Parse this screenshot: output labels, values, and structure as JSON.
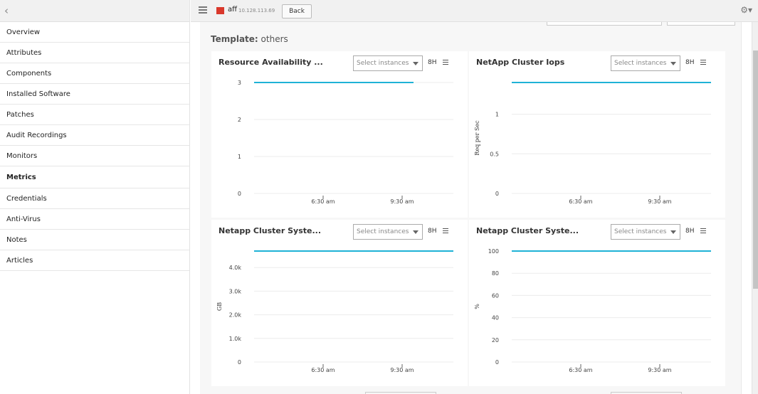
{
  "sidebar": {
    "items": [
      {
        "label": "Overview"
      },
      {
        "label": "Attributes"
      },
      {
        "label": "Components"
      },
      {
        "label": "Installed Software"
      },
      {
        "label": "Patches"
      },
      {
        "label": "Audit Recordings"
      },
      {
        "label": "Monitors"
      },
      {
        "label": "Metrics",
        "active": true
      },
      {
        "label": "Credentials"
      },
      {
        "label": "Anti-Virus"
      },
      {
        "label": "Notes"
      },
      {
        "label": "Articles"
      }
    ]
  },
  "header": {
    "monitor_name": "aff",
    "monitor_ip": "10.128.113.69",
    "back_label": "Back",
    "status_color": "#d9382b"
  },
  "template": {
    "prefix": "Template:",
    "name": "others"
  },
  "panels": [
    {
      "title": "Resource Availability ...",
      "select_placeholder": "Select instances",
      "range": "8H"
    },
    {
      "title": "NetApp Cluster Iops",
      "select_placeholder": "Select instances",
      "range": "8H"
    },
    {
      "title": "Netapp Cluster Syste...",
      "select_placeholder": "Select instances",
      "range": "8H"
    },
    {
      "title": "Netapp Cluster Syste...",
      "select_placeholder": "Select instances",
      "range": "8H"
    }
  ],
  "chart_data": [
    {
      "type": "line",
      "title": "Resource Availability ...",
      "ylabel": "",
      "yticks": [
        "0",
        "1",
        "2",
        "3"
      ],
      "ylim": [
        0,
        3
      ],
      "xticks": [
        "6:30 am",
        "9:30 am"
      ],
      "series": [
        {
          "values": [
            3,
            3
          ],
          "x_extent": [
            0,
            0.8
          ]
        }
      ],
      "color": "#1fb2d6"
    },
    {
      "type": "line",
      "title": "NetApp Cluster Iops",
      "ylabel": "Req per Sec",
      "yticks": [
        "0",
        "0.5",
        "1"
      ],
      "ylim": [
        0,
        1.4
      ],
      "xticks": [
        "6:30 am",
        "9:30 am"
      ],
      "series": [
        {
          "values": [
            1.4,
            1.4
          ],
          "x_extent": [
            0,
            1
          ]
        }
      ],
      "color": "#1fb2d6"
    },
    {
      "type": "line",
      "title": "Netapp Cluster Syste...",
      "ylabel": "GB",
      "yticks": [
        "0",
        "1.0k",
        "2.0k",
        "3.0k",
        "4.0k"
      ],
      "ylim": [
        0,
        4700
      ],
      "xticks": [
        "6:30 am",
        "9:30 am"
      ],
      "series": [
        {
          "values": [
            4700,
            4700
          ],
          "x_extent": [
            0,
            1
          ]
        }
      ],
      "color": "#1fb2d6"
    },
    {
      "type": "line",
      "title": "Netapp Cluster Syste...",
      "ylabel": "%",
      "yticks": [
        "0",
        "20",
        "40",
        "60",
        "80",
        "100"
      ],
      "ylim": [
        0,
        100
      ],
      "xticks": [
        "6:30 am",
        "9:30 am"
      ],
      "series": [
        {
          "values": [
            100,
            100
          ],
          "x_extent": [
            0,
            1
          ]
        }
      ],
      "color": "#1fb2d6"
    }
  ]
}
